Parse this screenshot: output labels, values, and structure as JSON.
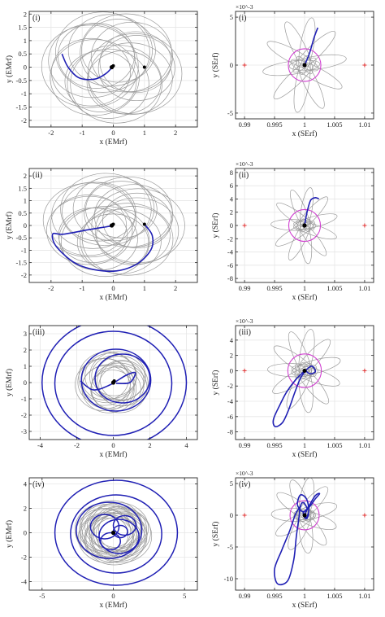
{
  "colors": {
    "trajectory_gray": "#9a9a9a",
    "trajectory_blue": "#1f1fb4",
    "circle_magenta": "#d040d0",
    "marker_red": "#e03030",
    "grid": "#e6e6e6",
    "axis": "#262626"
  },
  "chart_data": [
    {
      "type": "scatter",
      "label": "(i)",
      "frame": "EMrf",
      "xlabel": "x (EMrf)",
      "ylabel": "y (EMrf)",
      "xlim": [
        -2.7,
        2.7
      ],
      "ylim": [
        -2.25,
        2.1
      ],
      "xticks": [
        -2,
        -1,
        0,
        1,
        2
      ],
      "yticks": [
        -2,
        -1.5,
        -1,
        -0.5,
        0,
        0.5,
        1,
        1.5,
        2
      ],
      "xticklabels": [
        "-2",
        "-1",
        "0",
        "1",
        "2"
      ],
      "yticklabels": [
        "-2",
        "-1.5",
        "-1",
        "-0.5",
        "0",
        "0.5",
        "1",
        "1.5",
        "2"
      ],
      "grid": true,
      "loops": {
        "count": 18,
        "orbit_radius": 0.75,
        "loop_radius": 1.35
      },
      "blue_path": [
        [
          -1.65,
          0.5
        ],
        [
          -1.45,
          0.0
        ],
        [
          -1.1,
          -0.4
        ],
        [
          -0.6,
          -0.45
        ],
        [
          -0.25,
          -0.25
        ],
        [
          -0.05,
          -0.02
        ]
      ],
      "points": [
        {
          "x": -0.05,
          "y": 0.0,
          "role": "Earth"
        },
        {
          "x": 0.0,
          "y": 0.05,
          "role": "body"
        },
        {
          "x": 1.0,
          "y": 0.0,
          "role": "Moon"
        }
      ]
    },
    {
      "type": "scatter",
      "label": "(i)",
      "frame": "SErf",
      "xlabel": "x (SErf)",
      "ylabel": "y (SErf)",
      "yexponent": "×10^-3",
      "xlim": [
        0.9885,
        1.0115
      ],
      "ylim": [
        -5.6,
        5.6
      ],
      "xticks": [
        0.99,
        0.995,
        1,
        1.005,
        1.01
      ],
      "yticks": [
        -5,
        0,
        5
      ],
      "xticklabels": [
        "0.99",
        "0.995",
        "1",
        "1.005",
        "1.01"
      ],
      "yticklabels": [
        "-5",
        "0",
        "5"
      ],
      "grid": true,
      "petals": {
        "count": 10,
        "center_offset": 2.0,
        "rx": 0.0011,
        "ry": 3.0
      },
      "circle_radius": 1.7,
      "blue_path": [
        [
          1.0,
          0.0
        ],
        [
          1.0008,
          1.2
        ],
        [
          1.0016,
          2.9
        ],
        [
          1.0022,
          3.9
        ]
      ],
      "points": [
        {
          "x": 1.0,
          "y": 0.0,
          "role": "Earth"
        }
      ],
      "red_markers": [
        {
          "x": 0.99,
          "y": 0.0
        },
        {
          "x": 1.01,
          "y": 0.0
        }
      ]
    },
    {
      "type": "scatter",
      "label": "(ii)",
      "frame": "EMrf",
      "xlabel": "x (EMrf)",
      "ylabel": "y (EMrf)",
      "xlim": [
        -2.7,
        2.7
      ],
      "ylim": [
        -2.3,
        2.3
      ],
      "xticks": [
        -2,
        -1,
        0,
        1,
        2
      ],
      "yticks": [
        -2,
        -1.5,
        -1,
        -0.5,
        0,
        0.5,
        1,
        1.5,
        2
      ],
      "xticklabels": [
        "-2",
        "-1",
        "0",
        "1",
        "2"
      ],
      "yticklabels": [
        "-2",
        "-1.5",
        "-1",
        "-0.5",
        "0",
        "0.5",
        "1",
        "1.5",
        "2"
      ],
      "grid": true,
      "loops": {
        "count": 20,
        "orbit_radius": 0.8,
        "loop_radius": 1.3
      },
      "blue_path": [
        [
          1.0,
          0.05
        ],
        [
          1.25,
          -0.4
        ],
        [
          1.2,
          -1.0
        ],
        [
          0.7,
          -1.6
        ],
        [
          -0.1,
          -1.85
        ],
        [
          -1.1,
          -1.6
        ],
        [
          -1.8,
          -0.9
        ],
        [
          -1.95,
          -0.35
        ],
        [
          -1.6,
          -0.35
        ],
        [
          -0.7,
          -0.15
        ],
        [
          -0.05,
          -0.02
        ]
      ],
      "points": [
        {
          "x": -0.05,
          "y": 0.0,
          "role": "Earth"
        },
        {
          "x": 0.0,
          "y": 0.05,
          "role": "body"
        },
        {
          "x": 1.0,
          "y": 0.05,
          "role": "Moon"
        }
      ]
    },
    {
      "type": "scatter",
      "label": "(ii)",
      "frame": "SErf",
      "xlabel": "x (SErf)",
      "ylabel": "y (SErf)",
      "yexponent": "×10^-3",
      "xlim": [
        0.9885,
        1.0115
      ],
      "ylim": [
        -8.6,
        8.6
      ],
      "xticks": [
        0.99,
        0.995,
        1,
        1.005,
        1.01
      ],
      "yticks": [
        -8,
        -6,
        -4,
        -2,
        0,
        2,
        4,
        6,
        8
      ],
      "xticklabels": [
        "0.99",
        "0.995",
        "1",
        "1.005",
        "1.01"
      ],
      "yticklabels": [
        "-8",
        "-6",
        "-4",
        "-2",
        "0",
        "2",
        "4",
        "6",
        "8"
      ],
      "grid": true,
      "petals": {
        "count": 11,
        "center_offset": 2.4,
        "rx": 0.0009,
        "ry": 3.4
      },
      "circle_radius": 2.4,
      "blue_path": [
        [
          1.0,
          0.0
        ],
        [
          1.0004,
          2.0
        ],
        [
          1.001,
          3.8
        ],
        [
          1.0018,
          4.2
        ],
        [
          1.0024,
          4.0
        ]
      ],
      "points": [
        {
          "x": 1.0,
          "y": 0.0,
          "role": "Earth"
        }
      ],
      "red_markers": [
        {
          "x": 0.99,
          "y": 0.0
        },
        {
          "x": 1.01,
          "y": 0.0
        }
      ]
    },
    {
      "type": "scatter",
      "label": "(iii)",
      "frame": "EMrf",
      "xlabel": "x (EMrf)",
      "ylabel": "y (EMrf)",
      "xlim": [
        -4.6,
        4.6
      ],
      "ylim": [
        -3.5,
        3.5
      ],
      "xticks": [
        -4,
        -2,
        0,
        2,
        4
      ],
      "yticks": [
        -3,
        -2,
        -1,
        0,
        1,
        2,
        3
      ],
      "xticklabels": [
        "-4",
        "-2",
        "0",
        "2",
        "4"
      ],
      "yticklabels": [
        "-3",
        "-2",
        "-1",
        "0",
        "1",
        "2",
        "3"
      ],
      "grid": true,
      "loops": {
        "count": 16,
        "orbit_radius": 0.5,
        "loop_radius": 1.4
      },
      "blue_orbits": [
        {
          "cx": 0.05,
          "cy": 0.0,
          "r": 3.95
        },
        {
          "cx": 0.0,
          "cy": -0.05,
          "r": 3.2
        },
        {
          "cx": 0.5,
          "cy": 0.25,
          "r": 1.5
        },
        {
          "cx": 0.15,
          "cy": 0.15,
          "r": 1.9
        }
      ],
      "blue_path": [
        [
          -1.8,
          0.1
        ],
        [
          -1.1,
          -0.45
        ],
        [
          -0.2,
          -0.15
        ],
        [
          0.7,
          0.45
        ],
        [
          1.2,
          0.6
        ],
        [
          0.9,
          0.0
        ],
        [
          0.15,
          -0.05
        ]
      ],
      "points": [
        {
          "x": 0.0,
          "y": 0.0,
          "role": "Earth"
        },
        {
          "x": 0.05,
          "y": 0.1,
          "role": "body"
        }
      ]
    },
    {
      "type": "scatter",
      "label": "(iii)",
      "frame": "SErf",
      "xlabel": "x (SErf)",
      "ylabel": "y (SErf)",
      "yexponent": "×10^-3",
      "xlim": [
        0.9885,
        1.0115
      ],
      "ylim": [
        -9.0,
        5.9
      ],
      "xticks": [
        0.99,
        0.995,
        1,
        1.005,
        1.01
      ],
      "yticks": [
        -8,
        -6,
        -4,
        -2,
        0,
        2,
        4
      ],
      "xticklabels": [
        "0.99",
        "0.995",
        "1",
        "1.005",
        "1.01"
      ],
      "yticklabels": [
        "-8",
        "-6",
        "-4",
        "-2",
        "0",
        "2",
        "4"
      ],
      "grid": true,
      "petals": {
        "count": 11,
        "center_offset": 2.2,
        "rx": 0.0011,
        "ry": 3.3
      },
      "circle_radius": 2.2,
      "blue_path": [
        [
          1.0,
          0.0
        ],
        [
          0.9985,
          -1.2
        ],
        [
          0.997,
          -2.8
        ],
        [
          0.9958,
          -4.6
        ],
        [
          0.9948,
          -6.4
        ],
        [
          0.9951,
          -7.3
        ],
        [
          0.9963,
          -6.8
        ],
        [
          0.9973,
          -5.2
        ],
        [
          0.9983,
          -3.0
        ],
        [
          0.9993,
          -1.0
        ],
        [
          1.0003,
          0.1
        ],
        [
          1.0012,
          0.6
        ],
        [
          1.0018,
          -0.1
        ],
        [
          1.0009,
          -0.4
        ],
        [
          1.0002,
          0.0
        ]
      ],
      "points": [
        {
          "x": 1.0,
          "y": 0.0,
          "role": "Earth"
        }
      ],
      "red_markers": [
        {
          "x": 0.99,
          "y": 0.0
        },
        {
          "x": 1.01,
          "y": 0.0
        }
      ]
    },
    {
      "type": "scatter",
      "label": "(iv)",
      "frame": "EMrf",
      "xlabel": "x (EMrf)",
      "ylabel": "y (EMrf)",
      "xlim": [
        -5.9,
        5.9
      ],
      "ylim": [
        -4.7,
        4.5
      ],
      "xticks": [
        -5,
        0,
        5
      ],
      "yticks": [
        -4,
        -2,
        0,
        2,
        4
      ],
      "xticklabels": [
        "-5",
        "0",
        "5"
      ],
      "yticklabels": [
        "-4",
        "-2",
        "0",
        "2",
        "4"
      ],
      "grid": true,
      "loops": {
        "count": 22,
        "orbit_radius": 0.6,
        "loop_radius": 1.9
      },
      "blue_orbits": [
        {
          "cx": 0.2,
          "cy": 0.0,
          "r": 4.3
        },
        {
          "cx": 0.2,
          "cy": -0.1,
          "r": 3.2
        },
        {
          "cx": -0.3,
          "cy": 0.2,
          "r": 2.3
        },
        {
          "cx": 0.4,
          "cy": -0.3,
          "r": 1.4
        },
        {
          "cx": -0.6,
          "cy": 0.5,
          "r": 1.0
        },
        {
          "cx": 0.8,
          "cy": 0.6,
          "r": 0.8
        },
        {
          "cx": -0.2,
          "cy": -0.7,
          "r": 0.7
        },
        {
          "cx": 0.5,
          "cy": 0.1,
          "r": 0.5
        }
      ],
      "points": [
        {
          "x": 0.0,
          "y": 0.0,
          "role": "Earth"
        }
      ]
    },
    {
      "type": "scatter",
      "label": "(iv)",
      "frame": "SErf",
      "xlabel": "x (SErf)",
      "ylabel": "y (SErf)",
      "yexponent": "×10^-3",
      "xlim": [
        0.9885,
        1.0115
      ],
      "ylim": [
        -11.8,
        5.9
      ],
      "xticks": [
        0.99,
        0.995,
        1,
        1.005,
        1.01
      ],
      "yticks": [
        -10,
        -5,
        0,
        5
      ],
      "xticklabels": [
        "0.99",
        "0.995",
        "1",
        "1.005",
        "1.01"
      ],
      "yticklabels": [
        "-10",
        "-5",
        "0",
        "5"
      ],
      "grid": true,
      "petals": {
        "count": 11,
        "center_offset": 2.5,
        "rx": 0.0011,
        "ry": 3.5
      },
      "circle_radius": 2.3,
      "blue_path": [
        [
          0.9994,
          1.5
        ],
        [
          0.9985,
          0.2
        ],
        [
          0.9975,
          -2.5
        ],
        [
          0.9962,
          -5.5
        ],
        [
          0.995,
          -8.5
        ],
        [
          0.9955,
          -10.8
        ],
        [
          0.9972,
          -10.3
        ],
        [
          0.9982,
          -7.0
        ],
        [
          0.9986,
          -3.5
        ],
        [
          0.999,
          -0.8
        ],
        [
          0.9993,
          1.4
        ],
        [
          0.9998,
          2.0
        ],
        [
          1.0004,
          1.0
        ],
        [
          0.9996,
          0.6
        ],
        [
          0.9988,
          1.7
        ],
        [
          0.9993,
          3.2
        ],
        [
          1.0003,
          2.6
        ],
        [
          1.0007,
          0.8
        ],
        [
          1.0002,
          -0.5
        ],
        [
          0.9998,
          0.4
        ],
        [
          1.0008,
          1.3
        ],
        [
          1.0018,
          2.6
        ],
        [
          1.0025,
          3.4
        ],
        [
          1.0018,
          3.1
        ],
        [
          1.0006,
          1.2
        ],
        [
          1.0001,
          0.1
        ],
        [
          1.0004,
          -0.5
        ],
        [
          1.0007,
          0.3
        ]
      ],
      "points": [
        {
          "x": 1.0,
          "y": 0.0,
          "role": "Earth"
        }
      ],
      "red_markers": [
        {
          "x": 0.99,
          "y": 0.0
        },
        {
          "x": 1.01,
          "y": 0.0
        }
      ]
    }
  ]
}
